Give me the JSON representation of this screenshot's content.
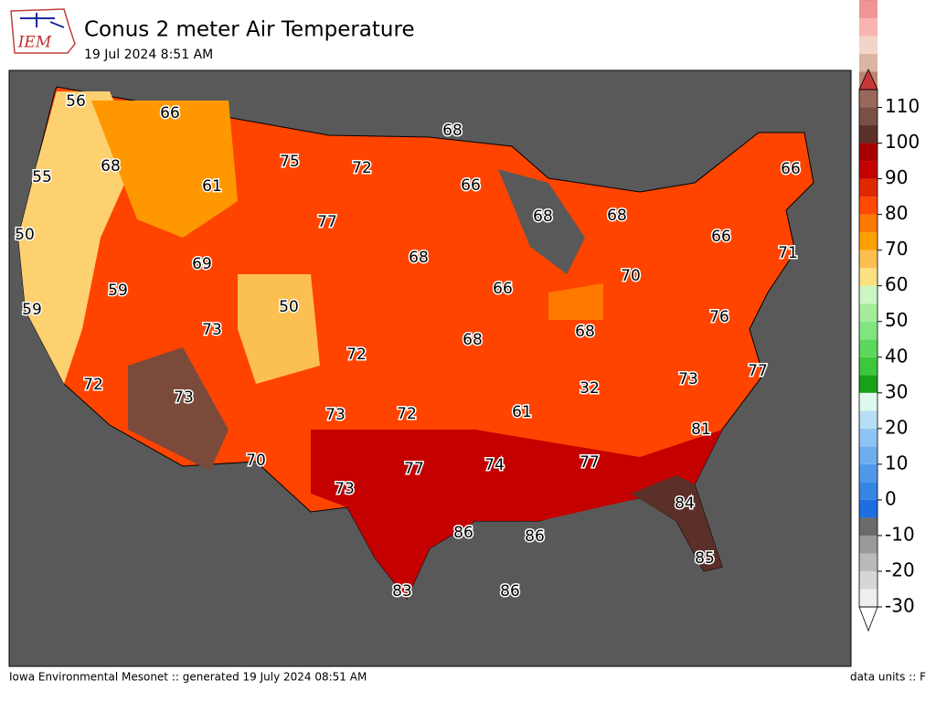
{
  "header": {
    "logo": "IEM",
    "title": "Conus 2 meter Air Temperature",
    "subtitle": "19 Jul 2024 8:51 AM"
  },
  "stations": [
    "56",
    "66",
    "68",
    "55",
    "68",
    "75",
    "72",
    "66",
    "66",
    "61",
    "77",
    "68",
    "68",
    "50",
    "66",
    "71",
    "69",
    "68",
    "59",
    "70",
    "66",
    "50",
    "59",
    "76",
    "73",
    "68",
    "68",
    "72",
    "77",
    "73",
    "72",
    "73",
    "32",
    "61",
    "73",
    "72",
    "81",
    "70",
    "77",
    "74",
    "77",
    "73",
    "84",
    "86",
    "86",
    "85",
    "83",
    "86"
  ],
  "colorbar": {
    "ticks": [
      -30,
      -20,
      -10,
      0,
      10,
      20,
      30,
      40,
      50,
      60,
      70,
      80,
      90,
      100,
      110
    ],
    "range": [
      -30,
      115
    ],
    "step": 5,
    "under_color": "#ffffff",
    "over_color": "#c83838",
    "colors": [
      "#eeeeee",
      "#d6d6d6",
      "#bababa",
      "#9a9a9a",
      "#6a6a6a",
      "#1e6ee0",
      "#3586e2",
      "#4f98e8",
      "#6eaeee",
      "#8ec4f3",
      "#b6def4",
      "#dff8ee",
      "#18a018",
      "#3cc83c",
      "#5cd85c",
      "#80e480",
      "#a4ec9c",
      "#ccf6c2",
      "#fde080",
      "#fcc050",
      "#ffa000",
      "#ff7800",
      "#ff4800",
      "#e02800",
      "#c40000",
      "#a80000",
      "#5a3028",
      "#7a5046",
      "#98685a",
      "#ba8672",
      "#dcb4a2",
      "#f2d4c8",
      "#f8b4b0",
      "#f09494",
      "#e07070"
    ]
  },
  "footer": {
    "left": "Iowa Environmental Mesonet :: generated 19 July 2024 08:51 AM",
    "right": "data units :: F"
  }
}
